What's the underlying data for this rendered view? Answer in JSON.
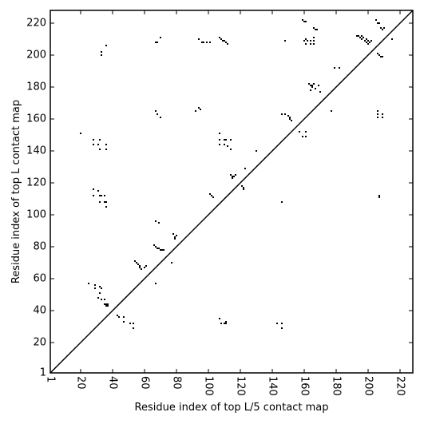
{
  "chart_data": {
    "type": "scatter",
    "title": "",
    "xlabel": "Residue index of top L/5 contact map",
    "ylabel": "Residue index of top L contact map",
    "xlim": [
      1,
      228
    ],
    "ylim": [
      1,
      228
    ],
    "xticks": [
      1,
      20,
      40,
      60,
      80,
      100,
      120,
      140,
      160,
      180,
      200,
      220
    ],
    "yticks": [
      1,
      20,
      40,
      60,
      80,
      100,
      120,
      140,
      160,
      180,
      200,
      220
    ],
    "x_tick_rotation_deg": -90,
    "diagonal": {
      "from": [
        1,
        1
      ],
      "to": [
        228,
        228
      ]
    },
    "grid": false,
    "legend": "none",
    "marker_color": "#000000",
    "series": [
      {
        "points": [
          [
            20,
            151
          ],
          [
            28,
            147
          ],
          [
            32,
            147
          ],
          [
            28,
            144
          ],
          [
            31,
            144
          ],
          [
            32,
            141
          ],
          [
            36,
            144
          ],
          [
            36,
            141
          ],
          [
            33,
            200
          ],
          [
            33,
            202
          ],
          [
            36,
            206
          ],
          [
            28,
            116
          ],
          [
            31,
            115
          ],
          [
            28,
            112
          ],
          [
            32,
            112
          ],
          [
            33,
            112
          ],
          [
            35,
            112
          ],
          [
            32,
            108
          ],
          [
            35,
            108
          ],
          [
            36,
            108
          ],
          [
            36,
            105
          ],
          [
            25,
            57
          ],
          [
            29,
            56
          ],
          [
            29,
            54
          ],
          [
            32,
            55
          ],
          [
            33,
            54
          ],
          [
            32,
            51
          ],
          [
            31,
            48
          ],
          [
            33,
            47
          ],
          [
            35,
            47
          ],
          [
            35,
            44
          ],
          [
            36,
            43
          ],
          [
            36,
            44
          ],
          [
            37,
            43
          ],
          [
            37,
            44
          ],
          [
            43,
            37
          ],
          [
            44,
            36
          ],
          [
            47,
            36
          ],
          [
            47,
            33
          ],
          [
            51,
            32
          ],
          [
            53,
            32
          ],
          [
            53,
            29
          ],
          [
            54,
            71
          ],
          [
            55,
            70
          ],
          [
            56,
            69
          ],
          [
            57,
            68
          ],
          [
            57,
            67
          ],
          [
            58,
            66
          ],
          [
            60,
            67
          ],
          [
            61,
            68
          ],
          [
            66,
            81
          ],
          [
            67,
            80
          ],
          [
            68,
            79
          ],
          [
            69,
            79
          ],
          [
            70,
            78
          ],
          [
            71,
            78
          ],
          [
            72,
            78
          ],
          [
            67,
            57
          ],
          [
            77,
            70
          ],
          [
            78,
            88
          ],
          [
            79,
            86
          ],
          [
            79,
            85
          ],
          [
            80,
            87
          ],
          [
            67,
            96
          ],
          [
            69,
            95
          ],
          [
            67,
            165
          ],
          [
            68,
            163
          ],
          [
            70,
            161
          ],
          [
            67,
            208
          ],
          [
            68,
            208
          ],
          [
            70,
            211
          ],
          [
            92,
            165
          ],
          [
            94,
            167
          ],
          [
            95,
            166
          ],
          [
            94,
            210
          ],
          [
            96,
            208
          ],
          [
            97,
            208
          ],
          [
            99,
            208
          ],
          [
            101,
            208
          ],
          [
            101,
            113
          ],
          [
            102,
            112
          ],
          [
            103,
            111
          ],
          [
            107,
            151
          ],
          [
            107,
            147
          ],
          [
            110,
            147
          ],
          [
            111,
            147
          ],
          [
            107,
            144
          ],
          [
            110,
            144
          ],
          [
            112,
            143
          ],
          [
            114,
            141
          ],
          [
            114,
            147
          ],
          [
            107,
            211
          ],
          [
            108,
            210
          ],
          [
            109,
            209
          ],
          [
            110,
            209
          ],
          [
            111,
            208
          ],
          [
            112,
            207
          ],
          [
            107,
            35
          ],
          [
            108,
            32
          ],
          [
            110,
            32
          ],
          [
            111,
            33
          ],
          [
            111,
            32
          ],
          [
            114,
            125
          ],
          [
            115,
            124
          ],
          [
            116,
            124
          ],
          [
            117,
            125
          ],
          [
            115,
            123
          ],
          [
            121,
            118
          ],
          [
            122,
            117
          ],
          [
            122,
            116
          ],
          [
            123,
            129
          ],
          [
            130,
            140
          ],
          [
            143,
            32
          ],
          [
            146,
            32
          ],
          [
            146,
            29
          ],
          [
            146,
            108
          ],
          [
            146,
            163
          ],
          [
            148,
            163
          ],
          [
            150,
            162
          ],
          [
            151,
            161
          ],
          [
            151,
            160
          ],
          [
            152,
            159
          ],
          [
            148,
            209
          ],
          [
            157,
            152
          ],
          [
            159,
            149
          ],
          [
            161,
            149
          ],
          [
            161,
            152
          ],
          [
            159,
            222
          ],
          [
            160,
            221
          ],
          [
            161,
            221
          ],
          [
            161,
            210
          ],
          [
            160,
            209
          ],
          [
            162,
            209
          ],
          [
            161,
            207
          ],
          [
            164,
            209
          ],
          [
            164,
            207
          ],
          [
            166,
            211
          ],
          [
            166,
            209
          ],
          [
            166,
            207
          ],
          [
            163,
            182
          ],
          [
            164,
            181
          ],
          [
            165,
            181
          ],
          [
            166,
            182
          ],
          [
            165,
            180
          ],
          [
            167,
            179
          ],
          [
            164,
            178
          ],
          [
            169,
            181
          ],
          [
            170,
            177
          ],
          [
            166,
            217
          ],
          [
            167,
            216
          ],
          [
            168,
            216
          ],
          [
            177,
            165
          ],
          [
            179,
            192
          ],
          [
            182,
            192
          ],
          [
            193,
            212
          ],
          [
            194,
            212
          ],
          [
            195,
            211
          ],
          [
            196,
            212
          ],
          [
            196,
            210
          ],
          [
            197,
            211
          ],
          [
            198,
            209
          ],
          [
            199,
            210
          ],
          [
            199,
            208
          ],
          [
            200,
            209
          ],
          [
            200,
            207
          ],
          [
            201,
            208
          ],
          [
            202,
            209
          ],
          [
            205,
            222
          ],
          [
            206,
            220
          ],
          [
            207,
            220
          ],
          [
            208,
            217
          ],
          [
            209,
            216
          ],
          [
            210,
            217
          ],
          [
            206,
            201
          ],
          [
            207,
            200
          ],
          [
            208,
            199
          ],
          [
            209,
            199
          ],
          [
            206,
            165
          ],
          [
            206,
            163
          ],
          [
            206,
            161
          ],
          [
            209,
            163
          ],
          [
            209,
            161
          ],
          [
            207,
            112
          ],
          [
            207,
            111
          ],
          [
            215,
            210
          ]
        ]
      }
    ]
  }
}
